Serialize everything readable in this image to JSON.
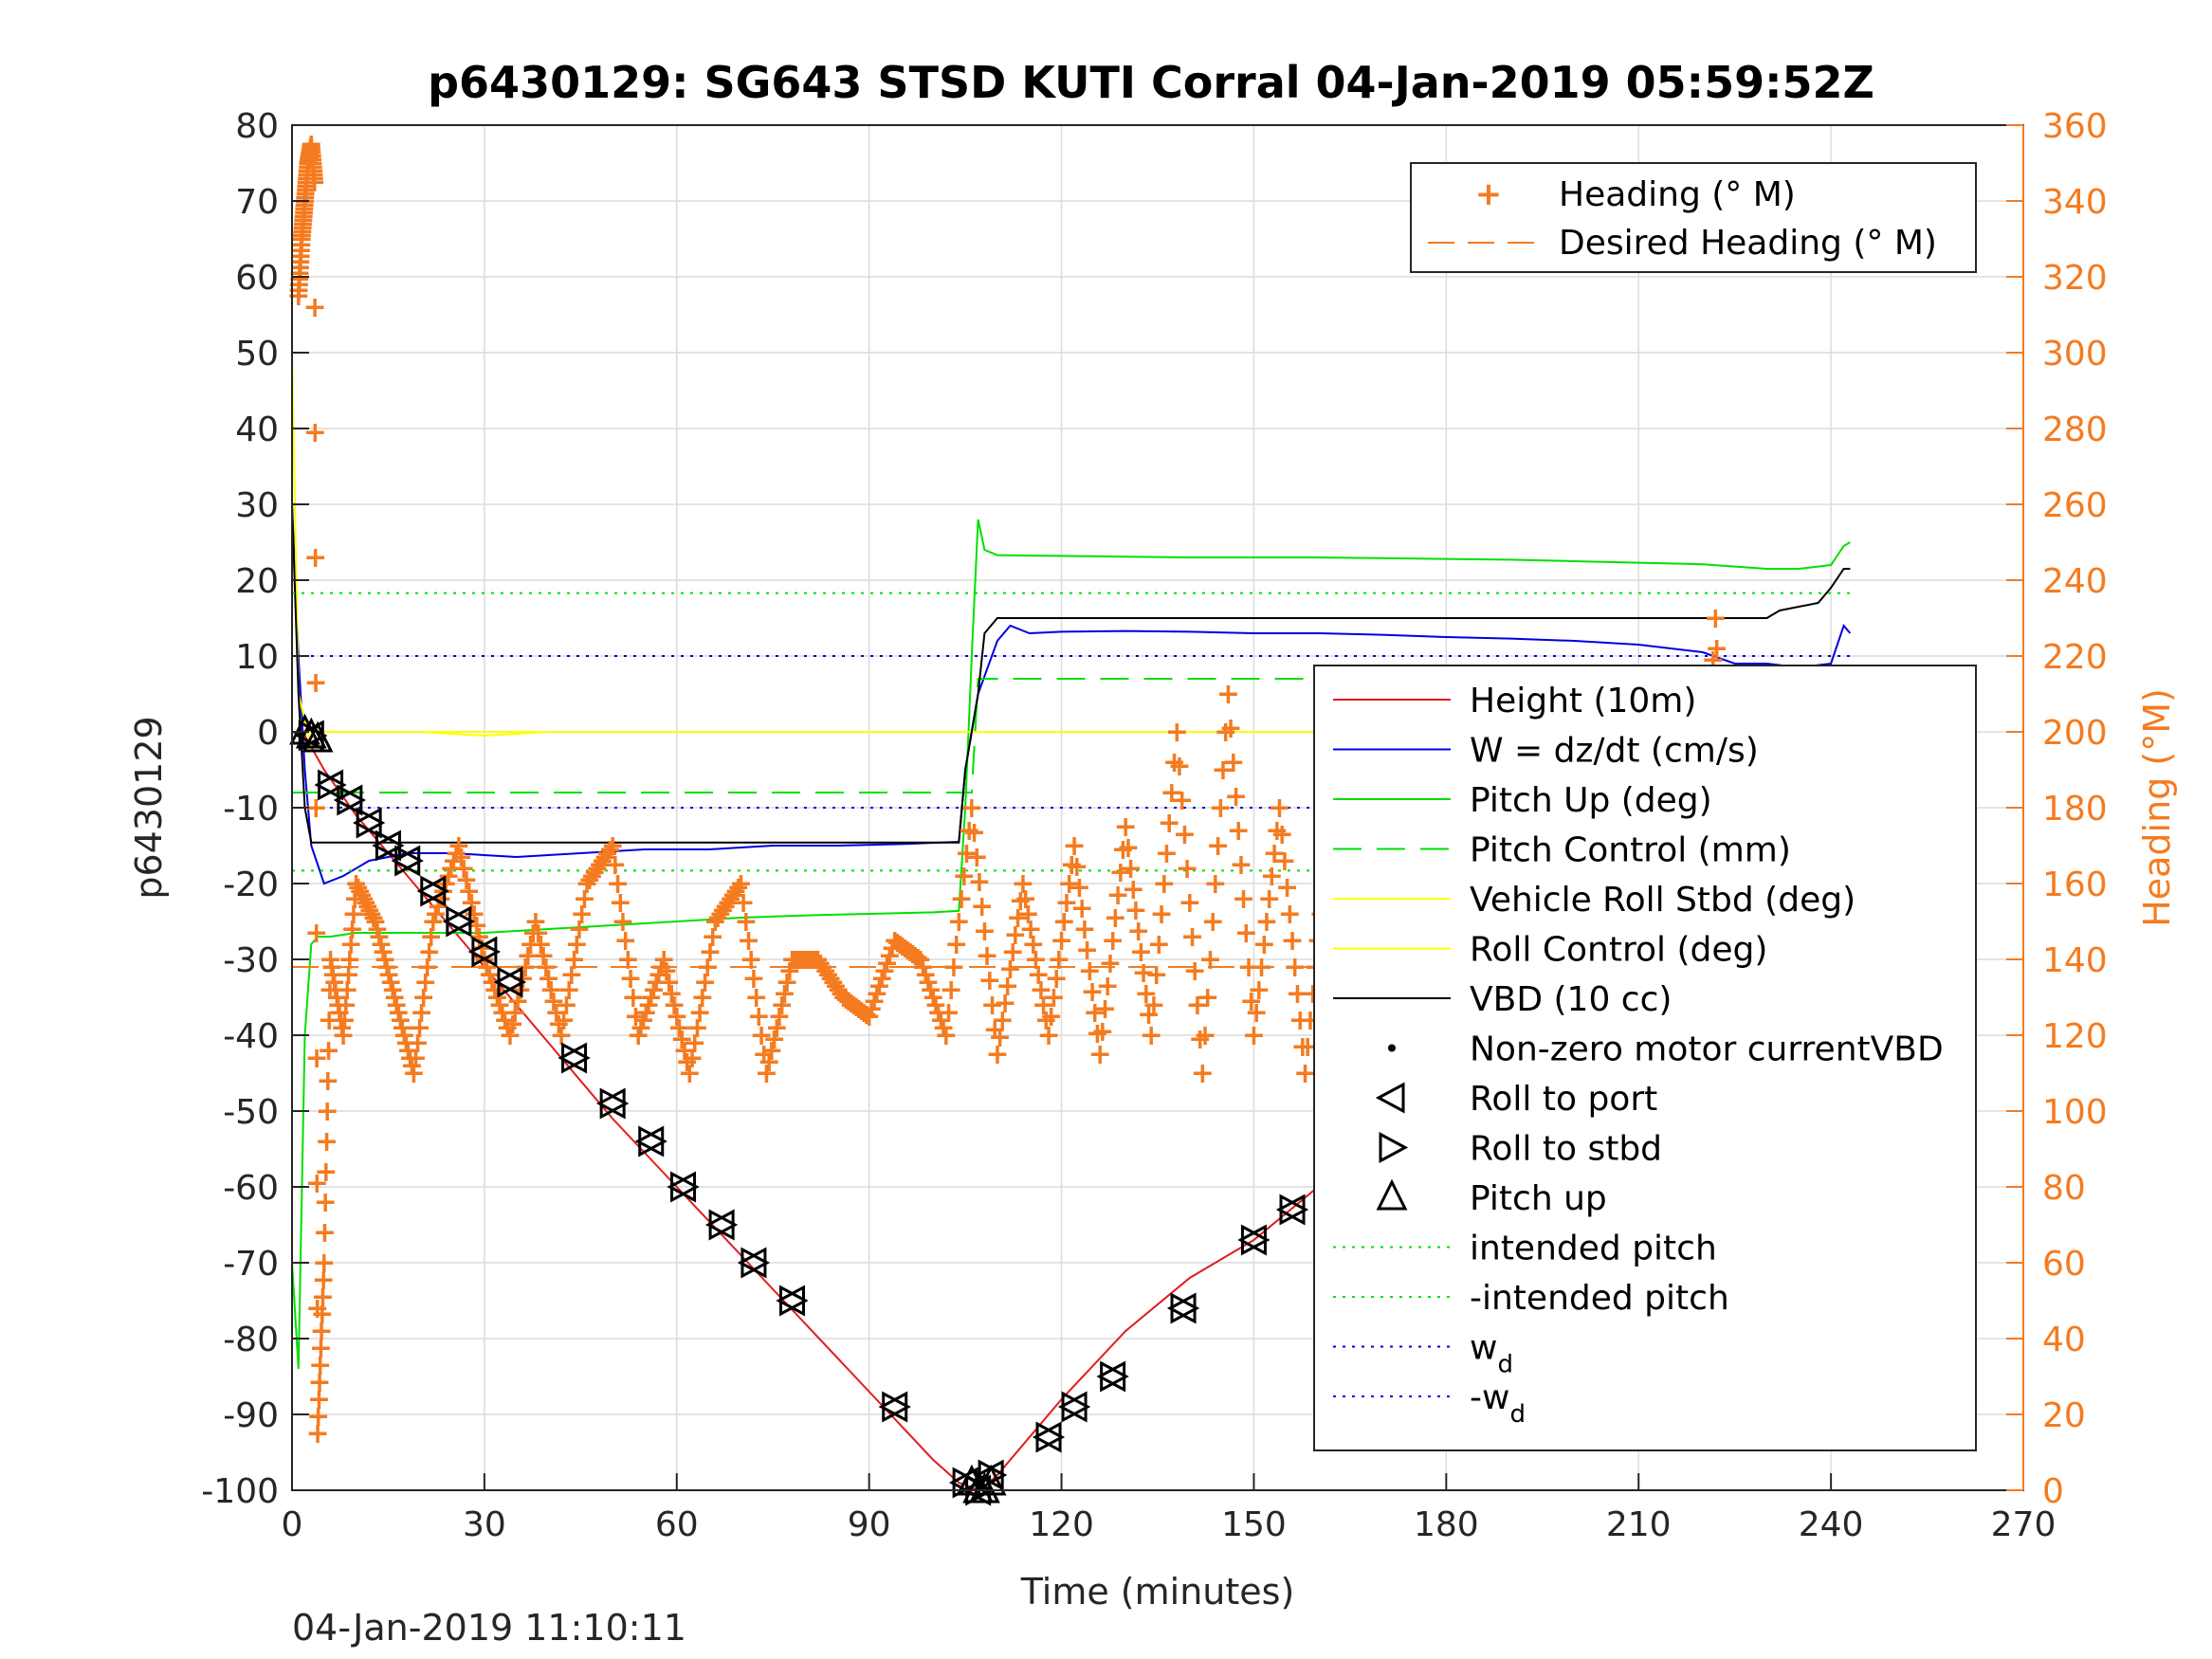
{
  "title": "p6430129: SG643 STSD KUTI Corral 04-Jan-2019 05:59:52Z",
  "footer_timestamp": "04-Jan-2019 11:10:11",
  "colors": {
    "heading": "#f47b20",
    "height": "#e31a1c",
    "w": "#0000e0",
    "pitch": "#00e000",
    "roll": "#ffff00",
    "vbd": "#000000",
    "axis": "#262626",
    "grid": "#dcdcdc"
  },
  "chart_data": {
    "type": "line",
    "title": "p6430129: SG643 STSD KUTI Corral 04-Jan-2019 05:59:52Z",
    "xlabel": "Time (minutes)",
    "ylabel": "p6430129",
    "y2label": "Heading (°M)",
    "xlim": [
      0,
      270
    ],
    "ylim": [
      -100,
      80
    ],
    "y2lim": [
      0,
      360
    ],
    "xticks": [
      "0",
      "30",
      "60",
      "90",
      "120",
      "150",
      "180",
      "210",
      "240",
      "270"
    ],
    "yticks": [
      "80",
      "70",
      "60",
      "50",
      "40",
      "30",
      "20",
      "10",
      "0",
      "-10",
      "-20",
      "-30",
      "-40",
      "-50",
      "-60",
      "-70",
      "-80",
      "-90",
      "-100"
    ],
    "y2ticks": [
      "360",
      "340",
      "320",
      "300",
      "280",
      "260",
      "240",
      "220",
      "200",
      "180",
      "160",
      "140",
      "120",
      "100",
      "80",
      "60",
      "40",
      "20",
      "0"
    ],
    "grid": true,
    "legend_upper": {
      "placement": "top-right",
      "entries": [
        "Heading (° M)",
        "Desired Heading (° M)"
      ]
    },
    "legend_lower": {
      "placement": "right",
      "entries": [
        "Height (10m)",
        "W = dz/dt (cm/s)",
        "Pitch Up (deg)",
        "Pitch Control (mm)",
        "Vehicle Roll Stbd (deg)",
        "Roll Control (deg)",
        "VBD (10 cc)",
        "Non-zero motor currentVBD",
        "Roll to port",
        "Roll to stbd",
        "Pitch up",
        "intended pitch",
        "-intended pitch",
        "w",
        "-w"
      ],
      "subscripts": {
        "13": "d",
        "14": "d"
      }
    },
    "series": [
      {
        "name": "Height (10m)",
        "axis": "left",
        "x": [
          0,
          2,
          5,
          10,
          20,
          30,
          40,
          50,
          60,
          70,
          80,
          90,
          100,
          104,
          107,
          108,
          110,
          120,
          130,
          140,
          150,
          160,
          170,
          180,
          190,
          200,
          210,
          220,
          230,
          240,
          243
        ],
        "y": [
          0,
          -0.5,
          -5,
          -11,
          -21,
          -31,
          -41,
          -51,
          -60,
          -69,
          -78,
          -87,
          -96,
          -99,
          -100,
          -99.5,
          -98,
          -88,
          -79,
          -72,
          -67,
          -60,
          -52,
          -45,
          -38,
          -31,
          -23,
          -15,
          -8,
          -3,
          -1
        ]
      },
      {
        "name": "W = dz/dt (cm/s)",
        "axis": "left",
        "x": [
          0,
          1,
          2,
          3,
          5,
          8,
          12,
          18,
          25,
          35,
          45,
          55,
          65,
          75,
          85,
          95,
          104,
          105,
          107,
          110,
          112,
          115,
          120,
          130,
          140,
          150,
          160,
          170,
          180,
          190,
          200,
          210,
          220,
          225,
          230,
          235,
          240,
          242,
          243
        ],
        "y": [
          30,
          10,
          -5,
          -15,
          -20,
          -19,
          -17,
          -16,
          -16,
          -16.5,
          -16,
          -15.5,
          -15.5,
          -15,
          -15,
          -14.8,
          -14.5,
          -5,
          5,
          12,
          14,
          13,
          13.2,
          13.3,
          13.2,
          13,
          13,
          12.8,
          12.5,
          12.3,
          12,
          11.5,
          10.5,
          9,
          9,
          8.5,
          9,
          14,
          13
        ]
      },
      {
        "name": "Pitch Up (deg)",
        "axis": "left",
        "x": [
          0,
          1,
          2,
          3,
          4,
          6,
          10,
          20,
          30,
          40,
          50,
          60,
          70,
          80,
          90,
          100,
          104,
          105,
          106,
          107,
          108,
          110,
          120,
          130,
          140,
          150,
          160,
          170,
          180,
          190,
          200,
          210,
          220,
          225,
          230,
          235,
          240,
          242,
          243
        ],
        "y": [
          -70,
          -84,
          -40,
          -28,
          -27,
          -27,
          -26.5,
          -26.5,
          -26.5,
          -26,
          -25.5,
          -25,
          -24.5,
          -24.2,
          -24,
          -23.8,
          -23.6,
          -10,
          10,
          28,
          24,
          23.3,
          23.2,
          23.1,
          23,
          23,
          23,
          22.9,
          22.8,
          22.7,
          22.5,
          22.3,
          22.1,
          21.8,
          21.5,
          21.5,
          22,
          24.5,
          25
        ]
      },
      {
        "name": "Pitch Control (mm)",
        "axis": "left",
        "x": [
          0,
          3,
          106,
          107,
          243
        ],
        "y": [
          -8,
          -8,
          -8,
          7,
          7
        ]
      },
      {
        "name": "Vehicle Roll Stbd (deg)",
        "axis": "left",
        "x": [
          0,
          1,
          3,
          5,
          10,
          20,
          30,
          40,
          50,
          60,
          70,
          80,
          90,
          100,
          106,
          110,
          120,
          130,
          140,
          150,
          160,
          170,
          180,
          190,
          200,
          210,
          220,
          230,
          240,
          243
        ],
        "y": [
          50,
          5,
          -2,
          0,
          0,
          0,
          -0.5,
          0,
          0,
          0,
          0,
          0,
          0,
          0,
          0,
          0,
          0,
          0,
          0,
          0,
          0,
          0,
          0,
          0,
          0,
          0,
          0,
          0,
          0,
          0
        ]
      },
      {
        "name": "Roll Control (deg)",
        "axis": "left",
        "x": [
          0,
          243
        ],
        "y": [
          0,
          0
        ]
      },
      {
        "name": "VBD (10 cc)",
        "axis": "left",
        "x": [
          0,
          1,
          2,
          3,
          50,
          104,
          105,
          107,
          108,
          110,
          230,
          232,
          238,
          240,
          242,
          243
        ],
        "y": [
          30,
          5,
          -10,
          -14.6,
          -14.6,
          -14.6,
          -5,
          5,
          13,
          15,
          15,
          16,
          17,
          19,
          21.5,
          21.5
        ]
      },
      {
        "name": "intended pitch",
        "axis": "left",
        "x": [
          0,
          243
        ],
        "y": [
          18.3,
          18.3
        ]
      },
      {
        "name": "-intended pitch",
        "axis": "left",
        "x": [
          0,
          243
        ],
        "y": [
          -18.3,
          -18.3
        ]
      },
      {
        "name": "w",
        "axis": "left",
        "x": [
          0,
          243
        ],
        "y": [
          10,
          10
        ]
      },
      {
        "name": "-w",
        "axis": "left",
        "x": [
          0,
          243
        ],
        "y": [
          -10,
          -10
        ]
      },
      {
        "name": "Desired Heading (° M)",
        "axis": "right",
        "x": [
          0,
          243
        ],
        "y": [
          138,
          138
        ]
      },
      {
        "name": "Heading (° M)",
        "axis": "right",
        "x": [
          1,
          1.5,
          2,
          2.5,
          3,
          3.5,
          4,
          5,
          6,
          8,
          10,
          13,
          16,
          19,
          22,
          26,
          30,
          34,
          38,
          42,
          46,
          50,
          54,
          58,
          62,
          66,
          70,
          74,
          78,
          82,
          86,
          90,
          94,
          98,
          102,
          106,
          110,
          114,
          118,
          122,
          126,
          130,
          134,
          138,
          142,
          146,
          150,
          154,
          158,
          162,
          166,
          170,
          174,
          178,
          182,
          186,
          190,
          194,
          198,
          202,
          206,
          210,
          214,
          218,
          222,
          224,
          226,
          228,
          230,
          234,
          238,
          241,
          243
        ],
        "y": [
          315,
          330,
          340,
          350,
          355,
          345,
          15,
          60,
          140,
          120,
          160,
          150,
          130,
          110,
          150,
          170,
          140,
          120,
          150,
          120,
          160,
          170,
          120,
          140,
          110,
          150,
          160,
          110,
          140,
          140,
          130,
          125,
          145,
          140,
          120,
          180,
          115,
          160,
          120,
          170,
          115,
          175,
          120,
          200,
          110,
          210,
          120,
          180,
          110,
          180,
          120,
          110,
          170,
          125,
          165,
          135,
          160,
          130,
          150,
          140,
          170,
          110,
          180,
          120,
          230,
          150,
          40,
          150,
          120,
          100,
          160,
          120,
          140
        ]
      }
    ],
    "markers": {
      "roll_to_port": {
        "x": [
          3,
          6,
          9,
          12,
          15,
          18,
          22,
          26,
          30,
          34,
          44,
          50,
          56,
          61,
          67,
          72,
          78,
          94,
          105,
          107,
          109,
          118,
          122,
          128,
          139,
          150,
          156,
          162,
          168,
          173,
          179,
          185,
          191,
          197,
          203,
          209,
          215,
          220,
          225,
          230,
          234,
          238,
          242
        ],
        "y": [
          -0.5,
          -7,
          -9,
          -12,
          -15,
          -17,
          -21,
          -25,
          -29,
          -33,
          -43,
          -49,
          -54,
          -60,
          -65,
          -70,
          -75,
          -89,
          -99,
          -100,
          -98,
          -93,
          -89,
          -85,
          -76,
          -67,
          -63,
          -58,
          -53,
          -49,
          -45,
          -40,
          -36,
          -32,
          -27,
          -24,
          -18,
          -14,
          -11,
          -7,
          -5,
          -3,
          -1
        ]
      },
      "pitch_up": {
        "x": [
          2,
          3,
          4,
          106,
          107,
          108,
          109
        ],
        "y": [
          0,
          -0.5,
          -1,
          -99,
          -100,
          -100,
          -99
        ]
      }
    }
  }
}
